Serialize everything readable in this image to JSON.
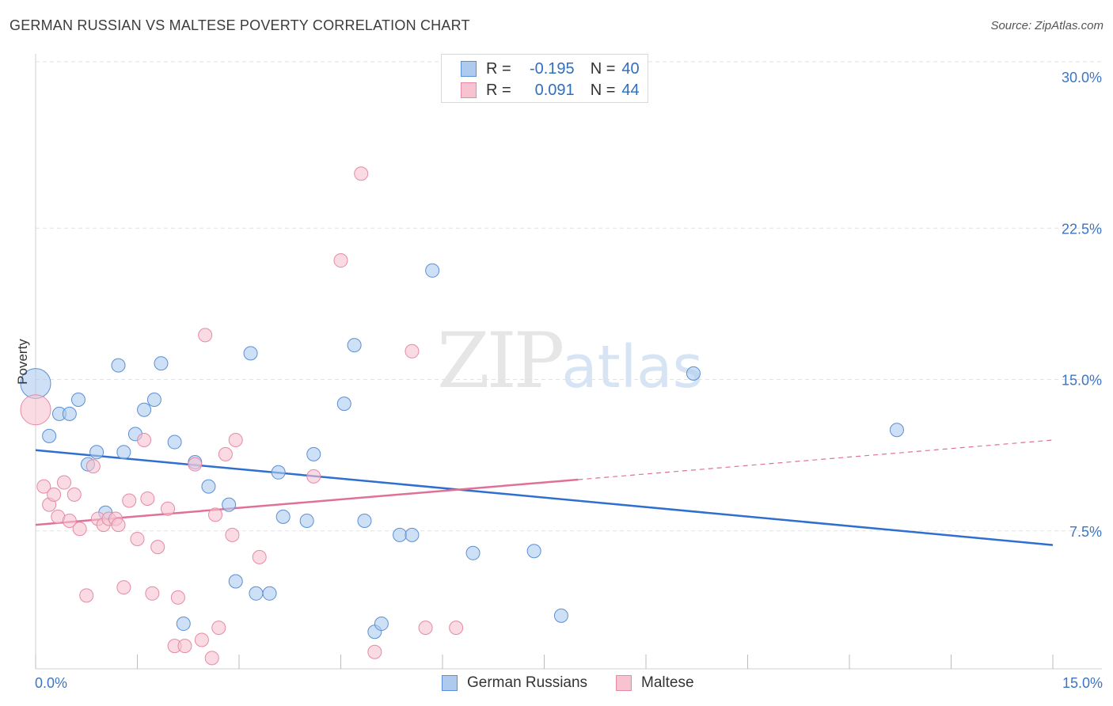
{
  "header": {
    "title": "GERMAN RUSSIAN VS MALTESE POVERTY CORRELATION CHART",
    "source": "Source: ZipAtlas.com"
  },
  "watermark": {
    "zip": "ZIP",
    "atlas": "atlas"
  },
  "legend": {
    "row1": {
      "r_label": "R =",
      "r_value": "-0.195",
      "n_label": "N =",
      "n_value": "40"
    },
    "row2": {
      "r_label": "R =",
      "r_value": "0.091",
      "n_label": "N =",
      "n_value": "44"
    }
  },
  "colors": {
    "blue_fill": "#aecbef",
    "blue_stroke": "#5b8fd6",
    "blue_line": "#2f6fcf",
    "pink_fill": "#f7c3d1",
    "pink_stroke": "#e68aa5",
    "pink_line": "#e0709a",
    "grid": "#e2e2e2",
    "axis_text": "#3d75c4"
  },
  "chart_data": {
    "type": "scatter",
    "title": "GERMAN RUSSIAN VS MALTESE POVERTY CORRELATION CHART",
    "xlabel": "",
    "ylabel": "Poverty",
    "xlim": [
      0,
      15
    ],
    "ylim": [
      0,
      30
    ],
    "x_tick_labels": [
      "0.0%",
      "15.0%"
    ],
    "y_ticks": [
      7.5,
      15.0,
      22.5,
      30.0
    ],
    "y_tick_labels": [
      "7.5%",
      "15.0%",
      "22.5%",
      "30.0%"
    ],
    "series": [
      {
        "name": "German Russians",
        "color": "#aecbef",
        "r": -0.195,
        "n": 40,
        "trend": {
          "x": [
            0,
            15
          ],
          "y": [
            11.5,
            6.8
          ],
          "dashed_from": null
        },
        "points": [
          {
            "x": 0.0,
            "y": 14.8,
            "big": true
          },
          {
            "x": 0.2,
            "y": 12.2
          },
          {
            "x": 0.35,
            "y": 13.3
          },
          {
            "x": 0.5,
            "y": 13.3
          },
          {
            "x": 0.63,
            "y": 14.0
          },
          {
            "x": 0.77,
            "y": 10.8
          },
          {
            "x": 0.9,
            "y": 11.4
          },
          {
            "x": 1.03,
            "y": 8.4
          },
          {
            "x": 1.22,
            "y": 15.7
          },
          {
            "x": 1.3,
            "y": 11.4
          },
          {
            "x": 1.47,
            "y": 12.3
          },
          {
            "x": 1.6,
            "y": 13.5
          },
          {
            "x": 1.75,
            "y": 14.0
          },
          {
            "x": 1.85,
            "y": 15.8
          },
          {
            "x": 2.05,
            "y": 11.9
          },
          {
            "x": 2.18,
            "y": 2.9
          },
          {
            "x": 2.35,
            "y": 10.9
          },
          {
            "x": 2.55,
            "y": 9.7
          },
          {
            "x": 2.85,
            "y": 8.8
          },
          {
            "x": 2.95,
            "y": 5.0
          },
          {
            "x": 3.17,
            "y": 16.3
          },
          {
            "x": 3.25,
            "y": 4.4
          },
          {
            "x": 3.45,
            "y": 4.4
          },
          {
            "x": 3.58,
            "y": 10.4
          },
          {
            "x": 3.65,
            "y": 8.2
          },
          {
            "x": 4.0,
            "y": 8.0
          },
          {
            "x": 4.1,
            "y": 11.3
          },
          {
            "x": 4.55,
            "y": 13.8
          },
          {
            "x": 4.7,
            "y": 16.7
          },
          {
            "x": 4.85,
            "y": 8.0
          },
          {
            "x": 5.0,
            "y": 2.5
          },
          {
            "x": 5.1,
            "y": 2.9
          },
          {
            "x": 5.37,
            "y": 7.3
          },
          {
            "x": 5.55,
            "y": 7.3
          },
          {
            "x": 5.85,
            "y": 20.4
          },
          {
            "x": 6.45,
            "y": 6.4
          },
          {
            "x": 7.35,
            "y": 6.5
          },
          {
            "x": 7.75,
            "y": 3.3
          },
          {
            "x": 9.7,
            "y": 15.3
          },
          {
            "x": 12.7,
            "y": 12.5
          }
        ]
      },
      {
        "name": "Maltese",
        "color": "#f7c3d1",
        "r": 0.091,
        "n": 44,
        "trend": {
          "x": [
            0,
            15
          ],
          "y": [
            7.8,
            12.0
          ],
          "dashed_from": 8.0
        },
        "points": [
          {
            "x": 0.0,
            "y": 13.5,
            "big": true
          },
          {
            "x": 0.12,
            "y": 9.7
          },
          {
            "x": 0.2,
            "y": 8.8
          },
          {
            "x": 0.27,
            "y": 9.3
          },
          {
            "x": 0.33,
            "y": 8.2
          },
          {
            "x": 0.42,
            "y": 9.9
          },
          {
            "x": 0.5,
            "y": 8.0
          },
          {
            "x": 0.57,
            "y": 9.3
          },
          {
            "x": 0.65,
            "y": 7.6
          },
          {
            "x": 0.75,
            "y": 4.3
          },
          {
            "x": 0.85,
            "y": 10.7
          },
          {
            "x": 0.92,
            "y": 8.1
          },
          {
            "x": 1.0,
            "y": 7.8
          },
          {
            "x": 1.08,
            "y": 8.1
          },
          {
            "x": 1.18,
            "y": 8.1
          },
          {
            "x": 1.22,
            "y": 7.8
          },
          {
            "x": 1.3,
            "y": 4.7
          },
          {
            "x": 1.38,
            "y": 9.0
          },
          {
            "x": 1.5,
            "y": 7.1
          },
          {
            "x": 1.6,
            "y": 12.0
          },
          {
            "x": 1.65,
            "y": 9.1
          },
          {
            "x": 1.72,
            "y": 4.4
          },
          {
            "x": 1.8,
            "y": 6.7
          },
          {
            "x": 1.95,
            "y": 8.6
          },
          {
            "x": 2.05,
            "y": 1.8
          },
          {
            "x": 2.1,
            "y": 4.2
          },
          {
            "x": 2.2,
            "y": 1.8
          },
          {
            "x": 2.35,
            "y": 10.8
          },
          {
            "x": 2.45,
            "y": 2.1
          },
          {
            "x": 2.5,
            "y": 17.2
          },
          {
            "x": 2.6,
            "y": 1.2
          },
          {
            "x": 2.65,
            "y": 8.3
          },
          {
            "x": 2.7,
            "y": 2.7
          },
          {
            "x": 2.8,
            "y": 11.3
          },
          {
            "x": 2.9,
            "y": 7.3
          },
          {
            "x": 2.95,
            "y": 12.0
          },
          {
            "x": 3.3,
            "y": 6.2
          },
          {
            "x": 4.1,
            "y": 10.2
          },
          {
            "x": 4.5,
            "y": 20.9
          },
          {
            "x": 4.8,
            "y": 25.2
          },
          {
            "x": 5.0,
            "y": 1.5
          },
          {
            "x": 5.55,
            "y": 16.4
          },
          {
            "x": 5.75,
            "y": 2.7
          },
          {
            "x": 6.2,
            "y": 2.7
          }
        ]
      }
    ],
    "bottom_legend": [
      "German Russians",
      "Maltese"
    ]
  }
}
